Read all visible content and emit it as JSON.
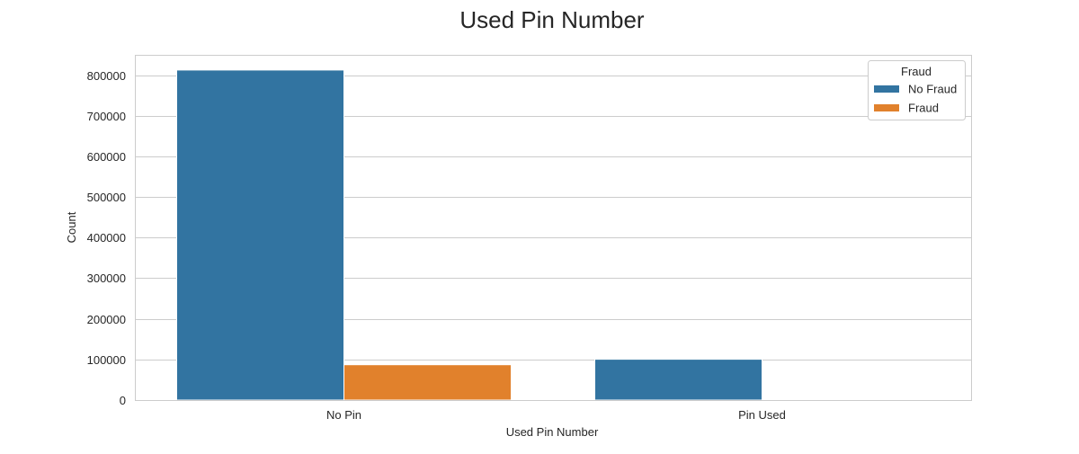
{
  "chart_data": {
    "type": "bar",
    "title": "Used Pin Number",
    "xlabel": "Used Pin Number",
    "ylabel": "Count",
    "categories": [
      "No Pin",
      "Pin Used"
    ],
    "series": [
      {
        "name": "No Fraud",
        "values": [
          812500,
          100500
        ]
      },
      {
        "name": "Fraud",
        "values": [
          87000,
          0
        ]
      }
    ],
    "ylim": [
      0,
      850000
    ],
    "yticks": [
      0,
      100000,
      200000,
      300000,
      400000,
      500000,
      600000,
      700000,
      800000
    ],
    "grid": true,
    "legend": {
      "title": "Fraud",
      "placement": "top-right"
    },
    "colors": {
      "No Fraud": "#3274a1",
      "Fraud": "#e1812c"
    }
  }
}
